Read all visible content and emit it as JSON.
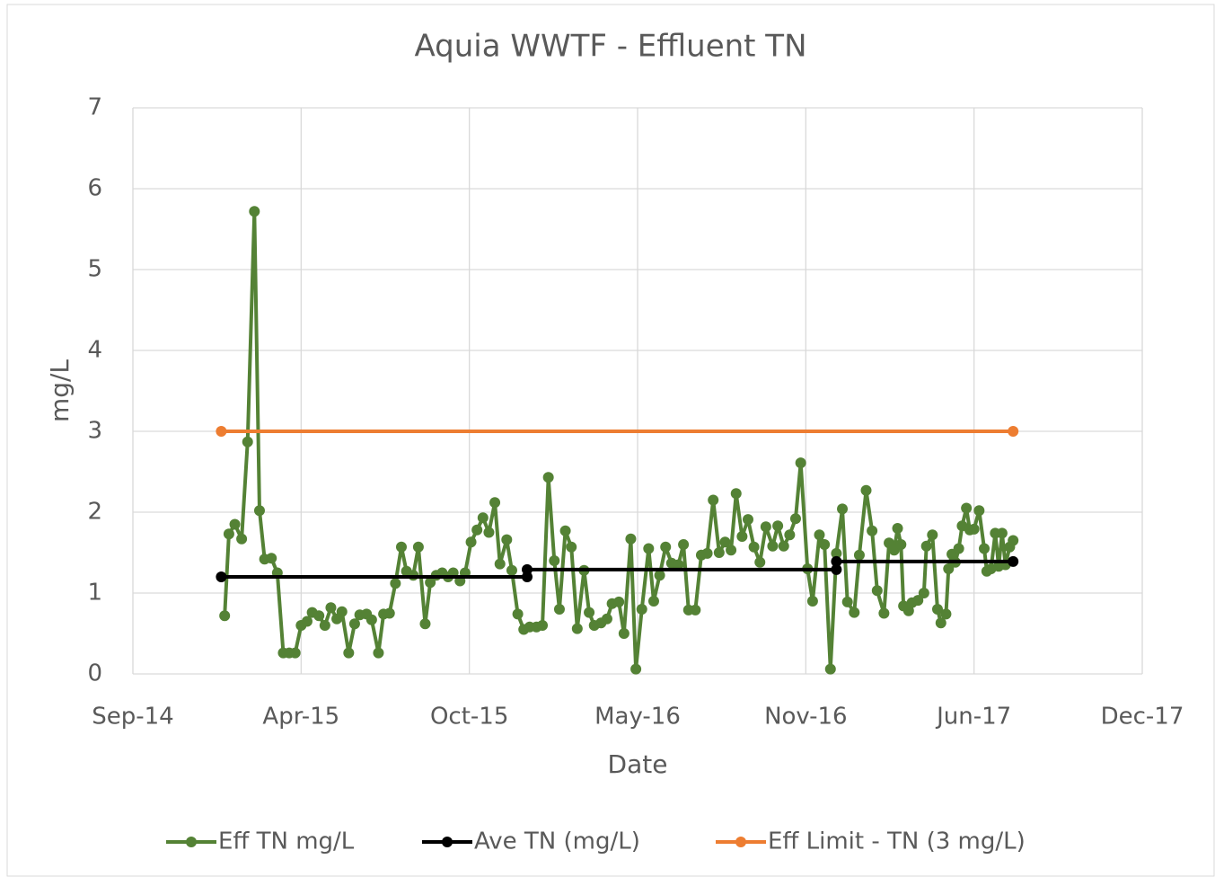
{
  "chart_data": {
    "type": "line",
    "title": "Aquia WWTF - Effluent TN",
    "x_label": "Date",
    "y_label": "mg/L",
    "xlim": [
      41900,
      43088
    ],
    "xticks": [
      {
        "value": 41900,
        "label": "Sep-14"
      },
      {
        "value": 42098,
        "label": "Apr-15"
      },
      {
        "value": 42296,
        "label": "Oct-15"
      },
      {
        "value": 42494,
        "label": "May-16"
      },
      {
        "value": 42692,
        "label": "Nov-16"
      },
      {
        "value": 42890,
        "label": "Jun-17"
      },
      {
        "value": 43088,
        "label": "Dec-17"
      }
    ],
    "ylim": [
      0,
      7
    ],
    "yticks": [
      0,
      1,
      2,
      3,
      4,
      5,
      6,
      7
    ],
    "grid": true,
    "legend": "bottom",
    "series": [
      {
        "name": "Eff TN mg/L",
        "color": "#548235",
        "x": [
          42008,
          42013,
          42020,
          42028,
          42035,
          42043,
          42049,
          42055,
          42063,
          42070,
          42077,
          42084,
          42091,
          42098,
          42105,
          42111,
          42119,
          42126,
          42133,
          42140,
          42146,
          42154,
          42161,
          42167,
          42175,
          42181,
          42189,
          42195,
          42202,
          42209,
          42216,
          42222,
          42230,
          42236,
          42244,
          42250,
          42257,
          42264,
          42271,
          42277,
          42285,
          42291,
          42298,
          42305,
          42312,
          42319,
          42326,
          42332,
          42340,
          42346,
          42353,
          42360,
          42367,
          42375,
          42382,
          42389,
          42396,
          42402,
          42409,
          42416,
          42423,
          42431,
          42437,
          42443,
          42451,
          42458,
          42464,
          42472,
          42478,
          42486,
          42492,
          42499,
          42507,
          42513,
          42520,
          42527,
          42534,
          42542,
          42548,
          42554,
          42562,
          42569,
          42576,
          42583,
          42590,
          42597,
          42604,
          42610,
          42617,
          42624,
          42631,
          42638,
          42645,
          42653,
          42659,
          42666,
          42673,
          42680,
          42686,
          42694,
          42700,
          42708,
          42714,
          42721,
          42728,
          42735,
          42741,
          42749,
          42755,
          42763,
          42770,
          42776,
          42784,
          42790,
          42796,
          42800,
          42804,
          42807,
          42813,
          42817,
          42824,
          42831,
          42834,
          42841,
          42847,
          42851,
          42857,
          42860,
          42864,
          42868,
          42872,
          42876,
          42881,
          42885,
          42890,
          42896,
          42902,
          42905,
          42910,
          42915,
          42919,
          42923,
          42927,
          42932,
          42936
        ],
        "values": [
          0.72,
          1.73,
          1.85,
          1.67,
          2.87,
          5.72,
          2.02,
          1.42,
          1.43,
          1.25,
          0.26,
          0.26,
          0.26,
          0.6,
          0.65,
          0.76,
          0.72,
          0.6,
          0.82,
          0.68,
          0.77,
          0.26,
          0.62,
          0.73,
          0.74,
          0.67,
          0.26,
          0.74,
          0.75,
          1.12,
          1.57,
          1.27,
          1.22,
          1.57,
          0.62,
          1.13,
          1.22,
          1.25,
          1.2,
          1.25,
          1.15,
          1.25,
          1.63,
          1.78,
          1.93,
          1.75,
          2.12,
          1.36,
          1.66,
          1.28,
          0.74,
          0.55,
          0.58,
          0.58,
          0.6,
          2.43,
          1.4,
          0.8,
          1.77,
          1.57,
          0.56,
          1.28,
          0.76,
          0.6,
          0.63,
          0.68,
          0.87,
          0.89,
          0.5,
          1.67,
          0.06,
          0.8,
          1.55,
          0.9,
          1.22,
          1.57,
          1.37,
          1.35,
          1.6,
          0.79,
          0.79,
          1.47,
          1.49,
          2.15,
          1.5,
          1.63,
          1.53,
          2.23,
          1.7,
          1.91,
          1.57,
          1.38,
          1.82,
          1.58,
          1.83,
          1.58,
          1.72,
          1.92,
          2.61,
          1.3,
          0.9,
          1.72,
          1.6,
          0.06,
          1.49,
          2.04,
          0.89,
          0.76,
          1.47,
          2.27,
          1.77,
          1.03,
          0.75,
          1.62,
          1.53,
          1.8,
          1.6,
          0.84,
          0.78,
          0.88,
          0.91,
          1.0,
          1.58,
          1.72,
          0.8,
          0.63,
          0.74,
          1.3,
          1.48,
          1.38,
          1.55,
          1.83,
          2.05,
          1.78,
          1.79,
          2.02,
          1.55,
          1.27,
          1.3,
          1.74,
          1.33,
          1.74,
          1.35,
          1.57,
          1.65
        ]
      },
      {
        "name": "Ave TN (mg/L)",
        "color": "#000000",
        "x": [
          42004,
          42364,
          42364,
          42728,
          42728,
          42936
        ],
        "values": [
          1.2,
          1.2,
          1.29,
          1.29,
          1.39,
          1.39
        ]
      },
      {
        "name": "Eff Limit - TN (3 mg/L)",
        "color": "#ed7d31",
        "x": [
          42004,
          42936
        ],
        "values": [
          3,
          3
        ]
      }
    ]
  }
}
